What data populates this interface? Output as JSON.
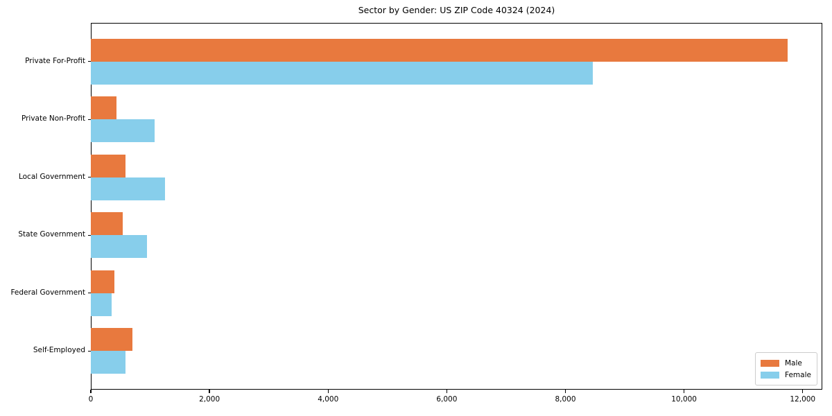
{
  "chart_data": {
    "type": "bar",
    "orientation": "horizontal",
    "title": "Sector by Gender: US ZIP Code 40324 (2024)",
    "categories": [
      "Private For-Profit",
      "Private Non-Profit",
      "Local Government",
      "State Government",
      "Federal Government",
      "Self-Employed"
    ],
    "series": [
      {
        "name": "Male",
        "color": "#E8793E",
        "values": [
          11740,
          430,
          590,
          540,
          400,
          700
        ]
      },
      {
        "name": "Female",
        "color": "#87CEEB",
        "values": [
          8460,
          1080,
          1250,
          950,
          350,
          590
        ]
      }
    ],
    "xlabel": "",
    "ylabel": "",
    "xlim": [
      0,
      12330
    ],
    "xticks": [
      0,
      2000,
      4000,
      6000,
      8000,
      10000,
      12000
    ],
    "xtick_labels": [
      "0",
      "2,000",
      "4,000",
      "6,000",
      "8,000",
      "10,000",
      "12,000"
    ],
    "grid": false,
    "legend": {
      "position": "lower right",
      "labels": [
        "Male",
        "Female"
      ]
    }
  }
}
